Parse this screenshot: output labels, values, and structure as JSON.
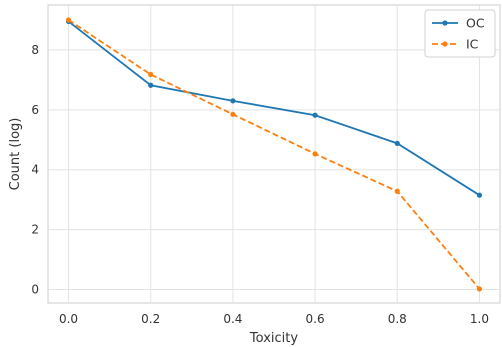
{
  "chart_data": {
    "type": "line",
    "title": "",
    "xlabel": "Toxicity",
    "ylabel": "Count (log)",
    "x": [
      0.0,
      0.2,
      0.4,
      0.6,
      0.8,
      1.0
    ],
    "xlim": [
      -0.05,
      1.05
    ],
    "ylim": [
      -0.45,
      9.5
    ],
    "x_ticks": [
      "0.0",
      "0.2",
      "0.4",
      "0.6",
      "0.8",
      "1.0"
    ],
    "y_ticks": [
      "0",
      "2",
      "4",
      "6",
      "8"
    ],
    "grid": true,
    "legend_position": "top-right",
    "series": [
      {
        "name": "OC",
        "values": [
          8.95,
          6.82,
          6.3,
          5.82,
          4.88,
          3.15
        ],
        "color": "#1f77b4",
        "style": "solid",
        "marker": "dot"
      },
      {
        "name": "IC",
        "values": [
          9.0,
          7.18,
          5.85,
          4.53,
          3.28,
          0.02
        ],
        "color": "#ff7f0e",
        "style": "dashed",
        "marker": "dot"
      }
    ]
  }
}
